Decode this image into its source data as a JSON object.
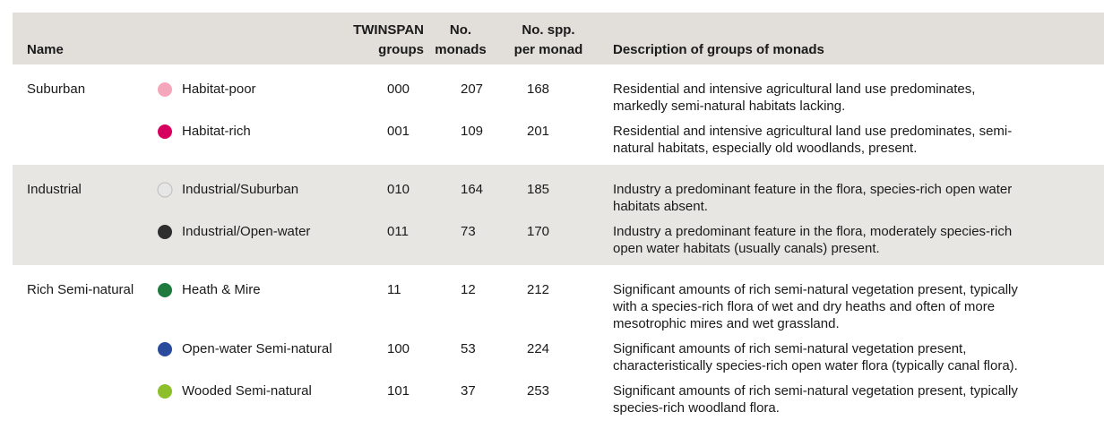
{
  "table": {
    "header": {
      "name": [
        "Name"
      ],
      "twinspan": [
        "TWINSPAN",
        "groups"
      ],
      "monads": [
        "No.",
        "monads"
      ],
      "spp": [
        "No. spp.",
        "per monad"
      ],
      "description": [
        "Description of groups of monads"
      ]
    },
    "groups": [
      {
        "name": "Suburban",
        "shaded": false,
        "rows": [
          {
            "label": "Habitat-poor",
            "color": "#f4a7ba",
            "twinspan": "000",
            "monads": 207,
            "spp": 168,
            "description": [
              "Residential and intensive agricultural land use predominates,",
              "markedly semi-natural habitats lacking."
            ]
          },
          {
            "label": "Habitat-rich",
            "color": "#d8005e",
            "twinspan": "001",
            "monads": 109,
            "spp": 201,
            "description": [
              "Residential and intensive agricultural land use predominates, semi-",
              "natural habitats, especially old woodlands, present."
            ]
          }
        ]
      },
      {
        "name": "Industrial",
        "shaded": true,
        "rows": [
          {
            "label": "Industrial/Suburban",
            "color": "#e6e6e6",
            "twinspan": "010",
            "monads": 164,
            "spp": 185,
            "description": [
              "Industry a predominant feature in the flora, species-rich open water",
              "habitats absent."
            ]
          },
          {
            "label": "Industrial/Open-water",
            "color": "#2e2e2e",
            "twinspan": "011",
            "monads": 73,
            "spp": 170,
            "description": [
              "Industry a predominant feature in the flora, moderately species-rich",
              "open water habitats (usually canals) present."
            ]
          }
        ]
      },
      {
        "name": "Rich Semi-natural",
        "shaded": false,
        "rows": [
          {
            "label": "Heath & Mire",
            "color": "#1f7a3e",
            "twinspan": "11",
            "monads": 12,
            "spp": 212,
            "description": [
              "Significant amounts of rich semi-natural vegetation present, typically",
              "with a species-rich flora of wet and dry heaths and often of more",
              "mesotrophic mires and wet grassland."
            ]
          },
          {
            "label": "Open-water Semi-natural",
            "color": "#2a4b9b",
            "twinspan": "100",
            "monads": 53,
            "spp": 224,
            "description": [
              "Significant amounts of rich semi-natural vegetation present,",
              "characteristically species-rich open water flora (typically canal flora)."
            ]
          },
          {
            "label": "Wooded Semi-natural",
            "color": "#8dbf2a",
            "twinspan": "101",
            "monads": 37,
            "spp": 253,
            "description": [
              "Significant amounts of rich semi-natural vegetation present, typically",
              "species-rich woodland flora."
            ]
          }
        ]
      }
    ]
  }
}
